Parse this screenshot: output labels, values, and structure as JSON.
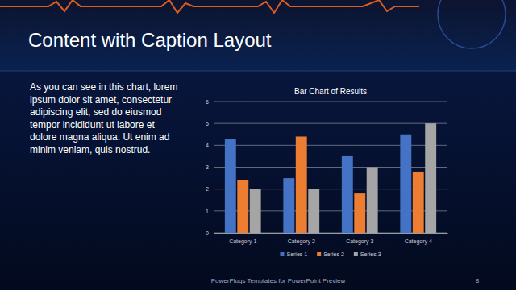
{
  "slide": {
    "title": "Content with Caption Layout",
    "caption": [
      "As you can see in this chart, lorem",
      "ipsum dolor sit amet, consectetur",
      "adipiscing elit, sed do eiusmod",
      "tempor incididunt ut labore et",
      "dolore magna aliqua. Ut enim ad",
      "minim veniam, quis nostrud."
    ],
    "footer": "PowerPlugs Templates for PowerPoint Preview",
    "page": "8"
  },
  "chart_data": {
    "type": "bar",
    "title": "Bar Chart of Results",
    "categories": [
      "Category 1",
      "Category 2",
      "Category 3",
      "Category 4"
    ],
    "series": [
      {
        "name": "Series 1",
        "color": "#4472c4",
        "values": [
          4.3,
          2.5,
          3.5,
          4.5
        ]
      },
      {
        "name": "Series 2",
        "color": "#ed7d31",
        "values": [
          2.4,
          4.4,
          1.8,
          2.8
        ]
      },
      {
        "name": "Series 3",
        "color": "#a5a5a5",
        "values": [
          2,
          2,
          3,
          5
        ]
      }
    ],
    "ylim": [
      0,
      6
    ],
    "yticks": [
      0,
      1,
      2,
      3,
      4,
      5,
      6
    ],
    "grid": true,
    "legend": "bottom"
  }
}
